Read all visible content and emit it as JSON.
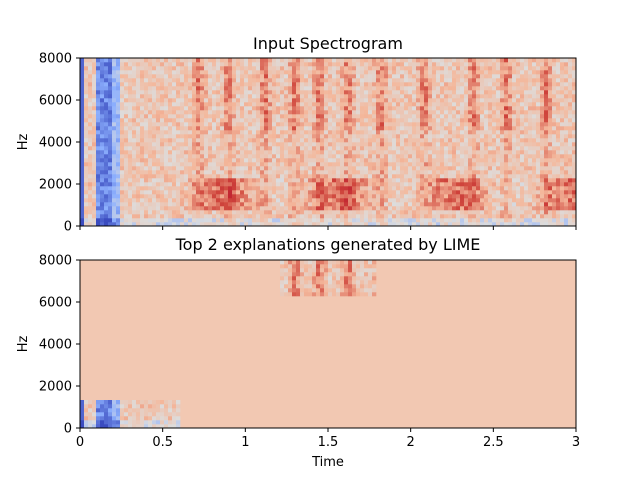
{
  "chart_data": [
    {
      "type": "heatmap",
      "title": "Input Spectrogram",
      "xlabel": "",
      "ylabel": "Hz",
      "xlim": [
        0,
        3
      ],
      "ylim": [
        0,
        8000
      ],
      "xticks": [],
      "yticks": [
        "0",
        "2000",
        "4000",
        "6000",
        "8000"
      ],
      "colormap": "coolwarm",
      "content": "full spectrogram: blue low-energy band near t=0.1-0.2s, red high-energy vertical bands across time"
    },
    {
      "type": "heatmap",
      "title": "Top 2 explanations generated by LIME",
      "xlabel": "Time",
      "ylabel": "Hz",
      "xlim": [
        0,
        3
      ],
      "ylim": [
        0,
        8000
      ],
      "xticks": [
        "0",
        "0.5",
        "1",
        "1.5",
        "2",
        "2.5",
        "3"
      ],
      "yticks": [
        "0",
        "2000",
        "4000",
        "6000",
        "8000"
      ],
      "colormap": "coolwarm",
      "background_color": "#f2c8b2",
      "explanation_regions": [
        {
          "t_start": 0.0,
          "t_end": 0.6,
          "f_start": 0,
          "f_end": 1250
        },
        {
          "t_start": 1.2,
          "t_end": 1.8,
          "f_start": 6300,
          "f_end": 8000
        }
      ]
    }
  ],
  "colors": {
    "blue": "#3b4cc0",
    "light_blue": "#8db0fe",
    "neutral": "#dddddd",
    "light_red": "#f4b89c",
    "red": "#d0473d",
    "dark_red": "#b40426",
    "background": "#f2c8b2"
  }
}
